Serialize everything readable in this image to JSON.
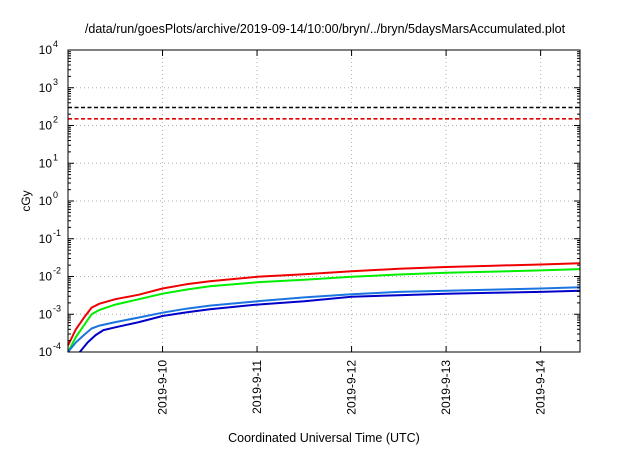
{
  "chart_data": {
    "type": "line",
    "title": "/data/run/goesPlots/archive/2019-09-14/10:00/bryn/../bryn/5daysMarsAccumulated.plot",
    "xlabel": "Coordinated Universal Time (UTC)",
    "ylabel": "cGy",
    "y_scale": "log",
    "ylim": [
      0.0001,
      10000
    ],
    "xlim": [
      "2019-09-09 00:00",
      "2019-09-14 10:00"
    ],
    "grid": true,
    "x_ticks": [
      "2019-9-10",
      "2019-9-11",
      "2019-9-12",
      "2019-9-13",
      "2019-9-14"
    ],
    "y_ticks": [
      {
        "base": "10",
        "exp": "-4",
        "value": 0.0001
      },
      {
        "base": "10",
        "exp": "-3",
        "value": 0.001
      },
      {
        "base": "10",
        "exp": "-2",
        "value": 0.01
      },
      {
        "base": "10",
        "exp": "-1",
        "value": 0.1
      },
      {
        "base": "10",
        "exp": "0",
        "value": 1
      },
      {
        "base": "10",
        "exp": "1",
        "value": 10
      },
      {
        "base": "10",
        "exp": "2",
        "value": 100
      },
      {
        "base": "10",
        "exp": "3",
        "value": 1000
      },
      {
        "base": "10",
        "exp": "4",
        "value": 10000
      }
    ],
    "reference_lines": [
      {
        "value": 300,
        "color": "#000000",
        "style": "dashed"
      },
      {
        "value": 150,
        "color": "#e00000",
        "style": "dashed"
      }
    ],
    "series": [
      {
        "color": "#ee0000",
        "points": [
          [
            "2019-09-09 00:00",
            0.00015
          ],
          [
            "2019-09-09 02:00",
            0.0004
          ],
          [
            "2019-09-09 04:00",
            0.0008
          ],
          [
            "2019-09-09 06:00",
            0.0015
          ],
          [
            "2019-09-09 08:00",
            0.0019
          ],
          [
            "2019-09-09 12:00",
            0.0025
          ],
          [
            "2019-09-09 18:00",
            0.0033
          ],
          [
            "2019-09-10 00:00",
            0.0048
          ],
          [
            "2019-09-10 06:00",
            0.0062
          ],
          [
            "2019-09-10 12:00",
            0.0075
          ],
          [
            "2019-09-11 00:00",
            0.0098
          ],
          [
            "2019-09-11 12:00",
            0.0115
          ],
          [
            "2019-09-12 00:00",
            0.0138
          ],
          [
            "2019-09-12 12:00",
            0.016
          ],
          [
            "2019-09-13 00:00",
            0.0178
          ],
          [
            "2019-09-13 12:00",
            0.0193
          ],
          [
            "2019-09-14 00:00",
            0.0208
          ],
          [
            "2019-09-14 10:00",
            0.0225
          ]
        ]
      },
      {
        "color": "#00ee00",
        "points": [
          [
            "2019-09-09 00:00",
            0.0001
          ],
          [
            "2019-09-09 02:00",
            0.00025
          ],
          [
            "2019-09-09 04:00",
            0.0005
          ],
          [
            "2019-09-09 06:00",
            0.001
          ],
          [
            "2019-09-09 08:00",
            0.0013
          ],
          [
            "2019-09-09 12:00",
            0.0018
          ],
          [
            "2019-09-09 18:00",
            0.0025
          ],
          [
            "2019-09-10 00:00",
            0.0035
          ],
          [
            "2019-09-10 06:00",
            0.0045
          ],
          [
            "2019-09-10 12:00",
            0.0055
          ],
          [
            "2019-09-11 00:00",
            0.007
          ],
          [
            "2019-09-11 12:00",
            0.0082
          ],
          [
            "2019-09-12 00:00",
            0.0098
          ],
          [
            "2019-09-12 12:00",
            0.0113
          ],
          [
            "2019-09-13 00:00",
            0.0125
          ],
          [
            "2019-09-13 12:00",
            0.0135
          ],
          [
            "2019-09-14 00:00",
            0.0145
          ],
          [
            "2019-09-14 10:00",
            0.0157
          ]
        ]
      },
      {
        "color": "#1a75e0",
        "points": [
          [
            "2019-09-09 00:00",
            0.0001
          ],
          [
            "2019-09-09 02:00",
            0.00018
          ],
          [
            "2019-09-09 04:00",
            0.00028
          ],
          [
            "2019-09-09 06:00",
            0.00042
          ],
          [
            "2019-09-09 08:00",
            0.0005
          ],
          [
            "2019-09-09 12:00",
            0.00062
          ],
          [
            "2019-09-09 18:00",
            0.00082
          ],
          [
            "2019-09-10 00:00",
            0.0011
          ],
          [
            "2019-09-10 06:00",
            0.0014
          ],
          [
            "2019-09-10 12:00",
            0.0017
          ],
          [
            "2019-09-11 00:00",
            0.0022
          ],
          [
            "2019-09-11 12:00",
            0.0028
          ],
          [
            "2019-09-12 00:00",
            0.0034
          ],
          [
            "2019-09-12 12:00",
            0.0039
          ],
          [
            "2019-09-13 00:00",
            0.0042
          ],
          [
            "2019-09-13 12:00",
            0.0045
          ],
          [
            "2019-09-14 00:00",
            0.0048
          ],
          [
            "2019-09-14 10:00",
            0.0052
          ]
        ]
      },
      {
        "color": "#0000c8",
        "points": [
          [
            "2019-09-09 03:00",
            0.0001
          ],
          [
            "2019-09-09 05:00",
            0.00018
          ],
          [
            "2019-09-09 07:00",
            0.00028
          ],
          [
            "2019-09-09 09:00",
            0.00038
          ],
          [
            "2019-09-09 12:00",
            0.00045
          ],
          [
            "2019-09-09 18:00",
            0.00062
          ],
          [
            "2019-09-10 00:00",
            0.0009
          ],
          [
            "2019-09-10 06:00",
            0.00112
          ],
          [
            "2019-09-10 12:00",
            0.00135
          ],
          [
            "2019-09-11 00:00",
            0.0018
          ],
          [
            "2019-09-11 12:00",
            0.0022
          ],
          [
            "2019-09-12 00:00",
            0.0029
          ],
          [
            "2019-09-12 12:00",
            0.0032
          ],
          [
            "2019-09-13 00:00",
            0.0035
          ],
          [
            "2019-09-13 12:00",
            0.0037
          ],
          [
            "2019-09-14 00:00",
            0.0039
          ],
          [
            "2019-09-14 10:00",
            0.0042
          ]
        ]
      }
    ]
  }
}
